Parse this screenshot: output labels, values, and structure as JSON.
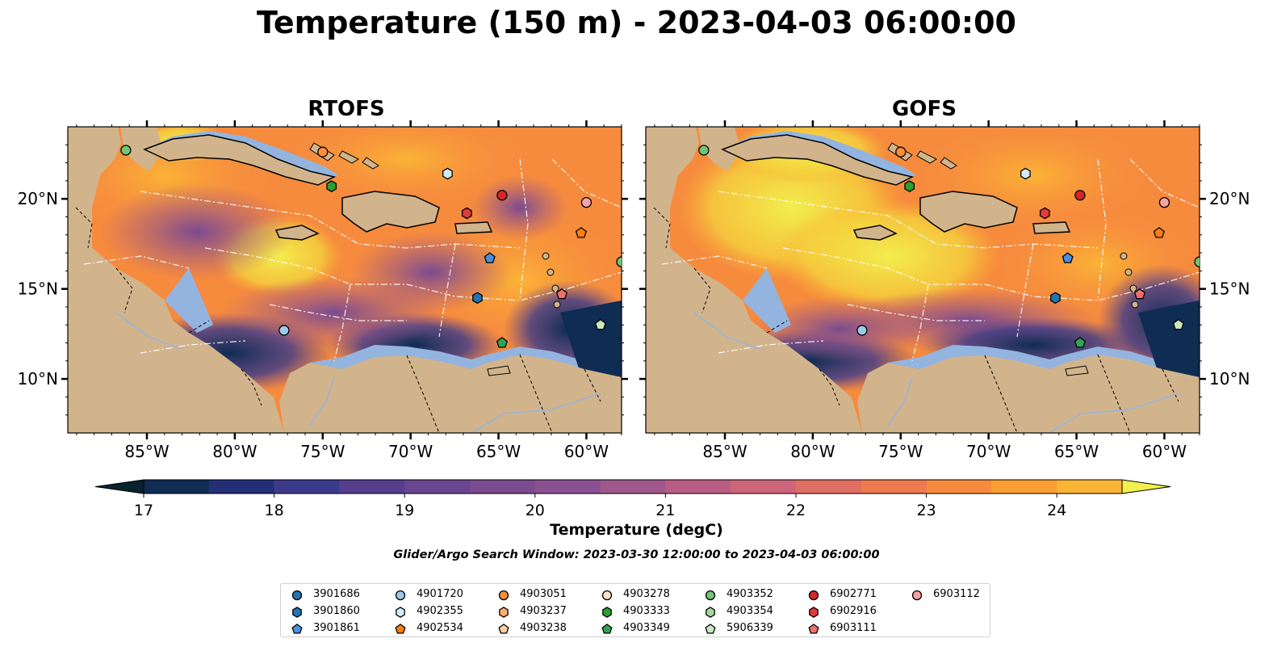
{
  "title": "Temperature (150 m) - 2023-04-03 06:00:00",
  "panels": [
    {
      "title": "RTOFS"
    },
    {
      "title": "GOFS"
    }
  ],
  "axes": {
    "lon_ticks": [
      "85°W",
      "80°W",
      "75°W",
      "70°W",
      "65°W",
      "60°W"
    ],
    "lat_ticks": [
      "20°N",
      "15°N",
      "10°N"
    ]
  },
  "colorbar": {
    "label": "Temperature (degC)",
    "min": 17,
    "max": 24.5,
    "step": 0.5,
    "tick_labels": [
      "17",
      "18",
      "19",
      "20",
      "21",
      "22",
      "23",
      "24"
    ],
    "colors": [
      "#06232e",
      "#0f2c52",
      "#242f78",
      "#3c3a8b",
      "#553e8e",
      "#6a4590",
      "#7a4b8f",
      "#8b5090",
      "#a0578d",
      "#b85e84",
      "#cc6678",
      "#e06e62",
      "#ee7a50",
      "#f68b3e",
      "#fa9f34",
      "#fbb436",
      "#f5d13d",
      "#f2ef4e"
    ],
    "extend": "both"
  },
  "search_window": "Glider/Argo Search Window: 2023-03-30 12:00:00 to 2023-04-03 06:00:00",
  "legend": [
    {
      "id": "3901686",
      "marker": "circle",
      "color": "#1f77b4"
    },
    {
      "id": "3901860",
      "marker": "hexagon",
      "color": "#1f77b4"
    },
    {
      "id": "3901861",
      "marker": "pentagon",
      "color": "#4a90e2"
    },
    {
      "id": "4901720",
      "marker": "circle",
      "color": "#9ecae9"
    },
    {
      "id": "4902355",
      "marker": "hexagon",
      "color": "#d0ecf9"
    },
    {
      "id": "4902534",
      "marker": "pentagon",
      "color": "#ff7f0e"
    },
    {
      "id": "4903051",
      "marker": "circle",
      "color": "#fd8d3c"
    },
    {
      "id": "4903237",
      "marker": "hexagon",
      "color": "#fdae6b"
    },
    {
      "id": "4903238",
      "marker": "pentagon",
      "color": "#fdd0a2"
    },
    {
      "id": "4903278",
      "marker": "circle",
      "color": "#fde0c8"
    },
    {
      "id": "4903333",
      "marker": "hexagon",
      "color": "#2ca02c"
    },
    {
      "id": "4903349",
      "marker": "pentagon",
      "color": "#31a354"
    },
    {
      "id": "4903352",
      "marker": "circle",
      "color": "#74c476"
    },
    {
      "id": "4903354",
      "marker": "hexagon",
      "color": "#a1d99b"
    },
    {
      "id": "5906339",
      "marker": "pentagon",
      "color": "#c7e9c0"
    },
    {
      "id": "6902771",
      "marker": "circle",
      "color": "#d62728"
    },
    {
      "id": "6902916",
      "marker": "hexagon",
      "color": "#e03a3a"
    },
    {
      "id": "6903111",
      "marker": "pentagon",
      "color": "#f07070"
    },
    {
      "id": "6903112",
      "marker": "circle",
      "color": "#f8a3a3"
    }
  ],
  "floats_on_map": [
    {
      "id": "4903352",
      "lon": -86.2,
      "lat": 22.7
    },
    {
      "id": "4903051",
      "lon": -75.0,
      "lat": 22.6
    },
    {
      "id": "4903333",
      "lon": -74.5,
      "lat": 20.7
    },
    {
      "id": "4902355",
      "lon": -67.9,
      "lat": 21.4
    },
    {
      "id": "6902771",
      "lon": -64.8,
      "lat": 20.2
    },
    {
      "id": "6902916",
      "lon": -66.8,
      "lat": 19.2
    },
    {
      "id": "6903112",
      "lon": -60.0,
      "lat": 19.8
    },
    {
      "id": "4902534",
      "lon": -60.3,
      "lat": 18.1
    },
    {
      "id": "3901861",
      "lon": -65.5,
      "lat": 16.7
    },
    {
      "id": "4903352",
      "lon": -58.0,
      "lat": 16.5
    },
    {
      "id": "6903111",
      "lon": -61.4,
      "lat": 14.7
    },
    {
      "id": "3901860",
      "lon": -66.2,
      "lat": 14.5
    },
    {
      "id": "4901720",
      "lon": -77.2,
      "lat": 12.7
    },
    {
      "id": "5906339",
      "lon": -59.2,
      "lat": 13.0
    },
    {
      "id": "4903349",
      "lon": -64.8,
      "lat": 12.0
    }
  ],
  "colors": {
    "land": "#d2b48c",
    "shelf": "#94b4e0",
    "deep": "#06232e"
  }
}
